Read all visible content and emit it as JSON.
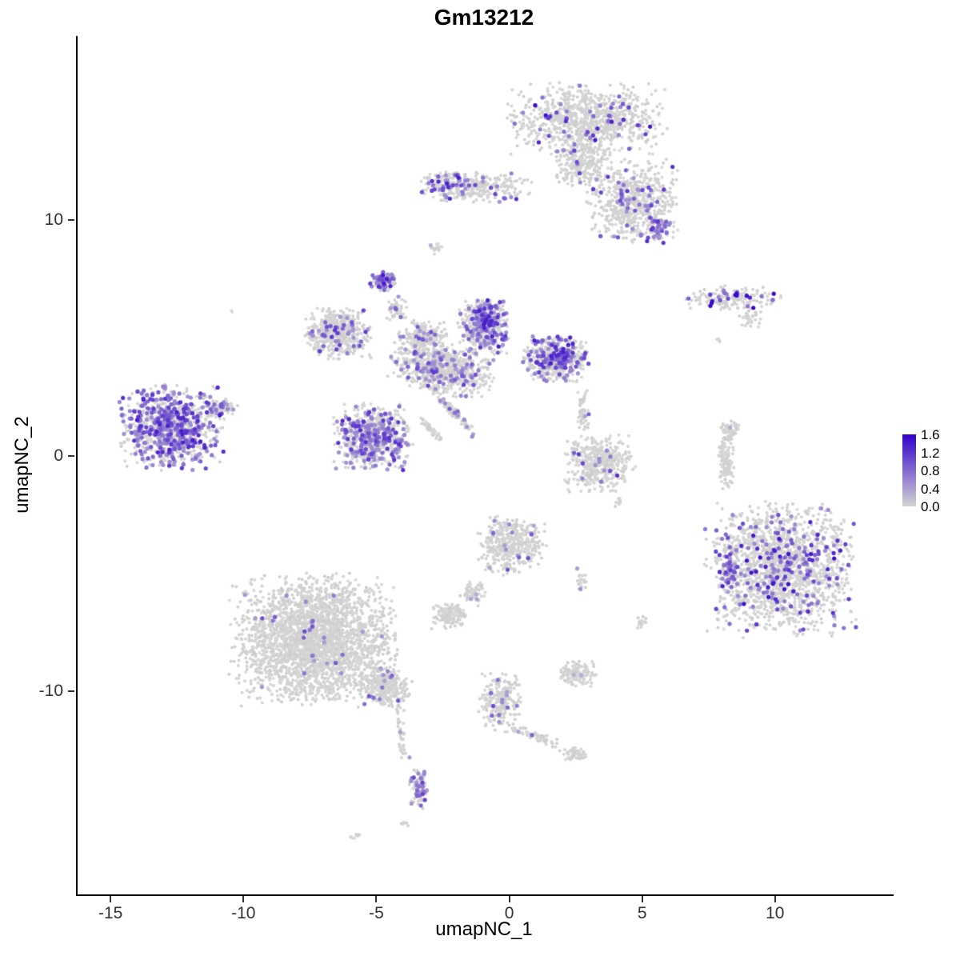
{
  "title": "Gm13212",
  "axes": {
    "x_label": "umapNC_1",
    "y_label": "umapNC_2"
  },
  "legend": {
    "tick_labels": [
      "1.6",
      "1.2",
      "0.8",
      "0.4",
      "0.0"
    ]
  },
  "colors": {
    "low": "#d3d3d3",
    "high": "#3300cc",
    "axis": "#000000",
    "tick_text": "#333333",
    "background": "#ffffff"
  },
  "chart_data": {
    "type": "scatter",
    "title": "Gm13212",
    "xlabel": "umapNC_1",
    "ylabel": "umapNC_2",
    "xlim": [
      -16.3,
      14.4
    ],
    "ylim": [
      -18.6,
      17.8
    ],
    "x_ticks": [
      -15,
      -10,
      -5,
      0,
      5,
      10
    ],
    "y_ticks": [
      -10,
      0,
      10
    ],
    "grid": false,
    "legend_position": "right",
    "color_scale": {
      "low_color": "#d3d3d3",
      "high_color": "#3300cc",
      "min": 0.0,
      "max": 1.6,
      "legend_ticks": [
        1.6,
        1.2,
        0.8,
        0.4,
        0.0
      ]
    },
    "point_radius_gray": 2.0,
    "point_radius_expr": 2.6,
    "seed": 42,
    "clusters": [
      {
        "name": "top-main",
        "cx": 2.8,
        "cy": 14.2,
        "rx": 3.1,
        "ry": 1.7,
        "rot": 0,
        "n": 950,
        "ef": 0.06,
        "em": 1.6
      },
      {
        "name": "top-neck",
        "cx": 2.7,
        "cy": 12.3,
        "rx": 1.1,
        "ry": 0.9,
        "rot": 0,
        "n": 200,
        "ef": 0.05,
        "em": 1.2
      },
      {
        "name": "top-lower",
        "cx": 4.6,
        "cy": 10.8,
        "rx": 1.8,
        "ry": 1.9,
        "rot": 0,
        "n": 600,
        "ef": 0.08,
        "em": 1.3
      },
      {
        "name": "top-lower-dense",
        "cx": 5.6,
        "cy": 9.6,
        "rx": 0.6,
        "ry": 0.6,
        "rot": 0,
        "n": 50,
        "ef": 0.5,
        "em": 1.2
      },
      {
        "name": "top-arm",
        "cx": -1.3,
        "cy": 11.4,
        "rx": 2.3,
        "ry": 0.7,
        "rot": 0,
        "n": 300,
        "ef": 0.1,
        "em": 1.3
      },
      {
        "name": "arm-west-dense",
        "cx": -2.6,
        "cy": 11.5,
        "rx": 0.8,
        "ry": 0.6,
        "rot": 0,
        "n": 70,
        "ef": 0.45,
        "em": 1.4
      },
      {
        "name": "arm-spot",
        "cx": -2.8,
        "cy": 8.8,
        "rx": 0.35,
        "ry": 0.3,
        "rot": 0,
        "n": 18,
        "ef": 0.06,
        "em": 0.8
      },
      {
        "name": "ne-streak",
        "cx": 8.3,
        "cy": 6.7,
        "rx": 1.9,
        "ry": 0.55,
        "rot": 0,
        "n": 180,
        "ef": 0.16,
        "em": 1.6
      },
      {
        "name": "ne-streak-tail",
        "cx": 9.0,
        "cy": 5.8,
        "rx": 0.55,
        "ry": 0.35,
        "rot": 0,
        "n": 40,
        "ef": 0.1,
        "em": 1.0
      },
      {
        "name": "ne-dot",
        "cx": 7.8,
        "cy": 4.9,
        "rx": 0.15,
        "ry": 0.12,
        "rot": 0,
        "n": 4,
        "ef": 0.3,
        "em": 1.0
      },
      {
        "name": "knob",
        "cx": -4.8,
        "cy": 7.4,
        "rx": 0.5,
        "ry": 0.45,
        "rot": 0,
        "n": 80,
        "ef": 0.6,
        "em": 1.4
      },
      {
        "name": "knob-stem",
        "cx": -4.3,
        "cy": 6.3,
        "rx": 0.4,
        "ry": 0.55,
        "rot": 0,
        "n": 50,
        "ef": 0.2,
        "em": 1.1
      },
      {
        "name": "west-lobe",
        "cx": -6.5,
        "cy": 5.2,
        "rx": 1.35,
        "ry": 1.15,
        "rot": 0,
        "n": 480,
        "ef": 0.1,
        "em": 1.2
      },
      {
        "name": "bridge",
        "cx": -3.3,
        "cy": 5.0,
        "rx": 1.0,
        "ry": 0.85,
        "rot": 0,
        "n": 200,
        "ef": 0.12,
        "em": 1.1
      },
      {
        "name": "central-top",
        "cx": -1.0,
        "cy": 5.5,
        "rx": 1.05,
        "ry": 1.2,
        "rot": 0,
        "n": 450,
        "ef": 0.25,
        "em": 1.4
      },
      {
        "name": "central-top-dense",
        "cx": -0.9,
        "cy": 5.9,
        "rx": 0.7,
        "ry": 0.55,
        "rot": 0,
        "n": 90,
        "ef": 0.6,
        "em": 1.4
      },
      {
        "name": "east-lobe",
        "cx": 1.7,
        "cy": 4.1,
        "rx": 1.3,
        "ry": 1.0,
        "rot": 0,
        "n": 450,
        "ef": 0.2,
        "em": 1.4
      },
      {
        "name": "east-lobe-dense",
        "cx": 1.9,
        "cy": 4.2,
        "rx": 0.6,
        "ry": 0.5,
        "rot": 0,
        "n": 80,
        "ef": 0.55,
        "em": 1.4
      },
      {
        "name": "central-mass",
        "cx": -2.6,
        "cy": 3.7,
        "rx": 2.1,
        "ry": 1.1,
        "rot": -12,
        "n": 750,
        "ef": 0.12,
        "em": 1.2
      },
      {
        "name": "sw-lobe",
        "cx": -5.2,
        "cy": 0.8,
        "rx": 1.55,
        "ry": 1.5,
        "rot": 0,
        "n": 650,
        "ef": 0.28,
        "em": 1.3
      },
      {
        "name": "diag-streak",
        "cx": -2.2,
        "cy": 1.9,
        "rx": 1.5,
        "ry": 0.17,
        "rot": -50,
        "n": 120,
        "ef": 0.08,
        "em": 1.0
      },
      {
        "name": "diag-streak2",
        "cx": -3.0,
        "cy": 1.1,
        "rx": 0.8,
        "ry": 0.13,
        "rot": -50,
        "n": 50,
        "ef": 0.08,
        "em": 1.0
      },
      {
        "name": "west-cluster",
        "cx": -12.8,
        "cy": 1.2,
        "rx": 2.1,
        "ry": 1.9,
        "rot": 0,
        "n": 850,
        "ef": 0.45,
        "em": 1.4
      },
      {
        "name": "west-cluster-arm",
        "cx": -10.9,
        "cy": 2.0,
        "rx": 0.7,
        "ry": 0.45,
        "rot": 0,
        "n": 70,
        "ef": 0.3,
        "em": 1.2
      },
      {
        "name": "mid-south",
        "cx": 3.3,
        "cy": -0.3,
        "rx": 1.4,
        "ry": 1.3,
        "rot": 0,
        "n": 450,
        "ef": 0.035,
        "em": 1.3
      },
      {
        "name": "mid-south-tendril",
        "cx": 2.7,
        "cy": 1.9,
        "rx": 0.25,
        "ry": 1.0,
        "rot": 0,
        "n": 50,
        "ef": 0.05,
        "em": 1.0
      },
      {
        "name": "east-streak",
        "cx": 8.1,
        "cy": -0.1,
        "rx": 0.3,
        "ry": 1.5,
        "rot": 0,
        "n": 130,
        "ef": 0.0,
        "em": 0.0
      },
      {
        "name": "east-streak-top",
        "cx": 8.3,
        "cy": 1.1,
        "rx": 0.4,
        "ry": 0.4,
        "rot": 0,
        "n": 45,
        "ef": 0.02,
        "em": 0.8
      },
      {
        "name": "se-big",
        "cx": 10.2,
        "cy": -4.8,
        "rx": 2.95,
        "ry": 3.0,
        "rot": 0,
        "n": 1700,
        "ef": 0.12,
        "em": 1.5
      },
      {
        "name": "se-big-west-dense",
        "cx": 8.2,
        "cy": -4.9,
        "rx": 0.4,
        "ry": 0.95,
        "rot": 0,
        "n": 70,
        "ef": 0.55,
        "em": 1.2
      },
      {
        "name": "south-mid",
        "cx": 0.0,
        "cy": -3.8,
        "rx": 1.35,
        "ry": 1.35,
        "rot": 0,
        "n": 400,
        "ef": 0.035,
        "em": 1.0
      },
      {
        "name": "south-mid-neck",
        "cx": -1.4,
        "cy": -5.8,
        "rx": 0.5,
        "ry": 0.6,
        "rot": -35,
        "n": 70,
        "ef": 0.02,
        "em": 0.8
      },
      {
        "name": "south-mid-blob",
        "cx": -2.3,
        "cy": -6.8,
        "rx": 0.7,
        "ry": 0.55,
        "rot": 0,
        "n": 130,
        "ef": 0.01,
        "em": 0.8
      },
      {
        "name": "dots-col",
        "cx": 2.7,
        "cy": -5.3,
        "rx": 0.22,
        "ry": 0.55,
        "rot": 0,
        "n": 22,
        "ef": 0.05,
        "em": 0.8
      },
      {
        "name": "tiny-east",
        "cx": 4.9,
        "cy": -7.1,
        "rx": 0.28,
        "ry": 0.3,
        "rot": 0,
        "n": 16,
        "ef": 0.12,
        "em": 1.0
      },
      {
        "name": "sw-big",
        "cx": -7.4,
        "cy": -7.8,
        "rx": 3.3,
        "ry": 2.9,
        "rot": 0,
        "n": 2700,
        "ef": 0.012,
        "em": 1.2
      },
      {
        "name": "sw-big-tail",
        "cx": -4.7,
        "cy": -9.8,
        "rx": 1.1,
        "ry": 0.9,
        "rot": -30,
        "n": 320,
        "ef": 0.03,
        "em": 1.1
      },
      {
        "name": "tail-dots",
        "cx": -4.1,
        "cy": -12.0,
        "rx": 0.2,
        "ry": 0.95,
        "rot": 8,
        "n": 30,
        "ef": 0.08,
        "em": 1.0
      },
      {
        "name": "tail-blob",
        "cx": -3.5,
        "cy": -14.2,
        "rx": 0.38,
        "ry": 0.9,
        "rot": 0,
        "n": 90,
        "ef": 0.4,
        "em": 1.2
      },
      {
        "name": "below-dots",
        "cx": -4.0,
        "cy": -15.6,
        "rx": 0.18,
        "ry": 0.22,
        "rot": 0,
        "n": 6,
        "ef": 0.0,
        "em": 0.0
      },
      {
        "name": "bottom-tiny",
        "cx": -5.8,
        "cy": -16.1,
        "rx": 0.4,
        "ry": 0.14,
        "rot": 0,
        "n": 10,
        "ef": 0.0,
        "em": 0.0
      },
      {
        "name": "south-center",
        "cx": -0.4,
        "cy": -10.4,
        "rx": 0.85,
        "ry": 1.35,
        "rot": 0,
        "n": 230,
        "ef": 0.05,
        "em": 1.1
      },
      {
        "name": "sc-arm",
        "cx": 1.0,
        "cy": -11.9,
        "rx": 1.3,
        "ry": 0.22,
        "rot": -25,
        "n": 60,
        "ef": 0.03,
        "em": 0.9
      },
      {
        "name": "sc-arm-blob",
        "cx": 2.4,
        "cy": -12.6,
        "rx": 0.45,
        "ry": 0.35,
        "rot": 0,
        "n": 55,
        "ef": 0.0,
        "em": 0.0
      },
      {
        "name": "south-small",
        "cx": 2.5,
        "cy": -9.2,
        "rx": 0.75,
        "ry": 0.6,
        "rot": 0,
        "n": 140,
        "ef": 0.01,
        "em": 0.8
      },
      {
        "name": "lone-dot-west",
        "cx": -10.5,
        "cy": 6.1,
        "rx": 0.1,
        "ry": 0.08,
        "rot": 0,
        "n": 2,
        "ef": 0.0,
        "em": 0.0
      },
      {
        "name": "mid-dots",
        "cx": 4.0,
        "cy": -2.0,
        "rx": 0.25,
        "ry": 0.35,
        "rot": 0,
        "n": 8,
        "ef": 0.1,
        "em": 0.9
      }
    ]
  }
}
